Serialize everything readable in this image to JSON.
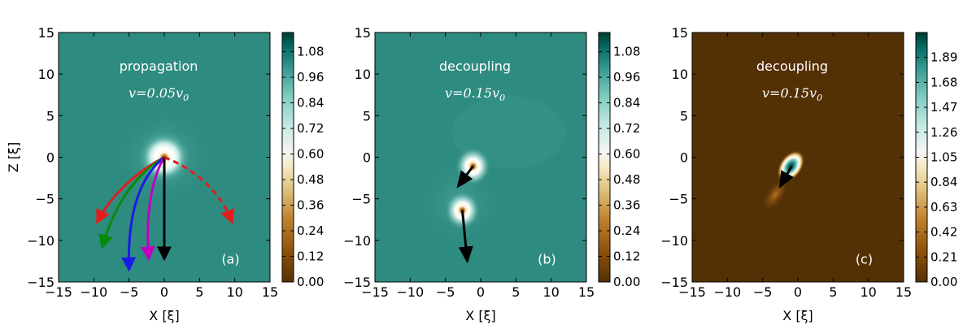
{
  "chart_data": [
    {
      "type": "heatmap",
      "panel": "(a)",
      "annotation_title": "propagation",
      "annotation_eq": "v=0.05v",
      "annotation_sub": "0",
      "xlabel": "X [ξ]",
      "ylabel": "Z [ξ]",
      "xlim": [
        -15,
        15
      ],
      "ylim": [
        -15,
        15
      ],
      "xticks": [
        -15,
        -10,
        -5,
        0,
        5,
        10,
        15
      ],
      "yticks": [
        -15,
        -10,
        -5,
        0,
        5,
        10,
        15
      ],
      "colorbar": {
        "range": [
          0,
          1.17
        ],
        "ticks": [
          "0.00",
          "0.12",
          "0.24",
          "0.36",
          "0.48",
          "0.60",
          "0.72",
          "0.84",
          "0.96",
          "1.08"
        ]
      },
      "background_level": 0.98,
      "vortices": [
        {
          "x": 0,
          "z": 0
        }
      ],
      "trajectories": [
        {
          "color": "#e51c1c",
          "style": "solid",
          "points": [
            [
              0,
              0
            ],
            [
              -4,
              -1.8
            ],
            [
              -7.5,
              -4.5
            ],
            [
              -9.5,
              -7.8
            ]
          ]
        },
        {
          "color": "#0a8a0a",
          "style": "solid",
          "points": [
            [
              0,
              0
            ],
            [
              -4,
              -2
            ],
            [
              -7,
              -5.5
            ],
            [
              -8.8,
              -10.8
            ]
          ]
        },
        {
          "color": "#1a1ae6",
          "style": "solid",
          "points": [
            [
              0,
              0
            ],
            [
              -3,
              -2
            ],
            [
              -5.3,
              -6
            ],
            [
              -5,
              -13.5
            ]
          ]
        },
        {
          "color": "#c000c0",
          "style": "solid",
          "points": [
            [
              0,
              0
            ],
            [
              -1.8,
              -2.5
            ],
            [
              -2.7,
              -7
            ],
            [
              -2.2,
              -12.2
            ]
          ]
        },
        {
          "color": "#000000",
          "style": "solid",
          "points": [
            [
              0,
              0
            ],
            [
              0,
              -12.2
            ]
          ]
        },
        {
          "color": "#e51c1c",
          "style": "dashed",
          "points": [
            [
              0,
              0
            ],
            [
              4.5,
              -1.5
            ],
            [
              8,
              -4.2
            ],
            [
              9.6,
              -7.8
            ]
          ]
        }
      ]
    },
    {
      "type": "heatmap",
      "panel": "(b)",
      "annotation_title": "decoupling",
      "annotation_eq": "v=0.15v",
      "annotation_sub": "0",
      "xlabel": "X [ξ]",
      "ylabel": "",
      "xlim": [
        -15,
        15
      ],
      "ylim": [
        -15,
        15
      ],
      "xticks": [
        -15,
        -10,
        -5,
        0,
        5,
        10,
        15
      ],
      "yticks": [
        -15,
        -10,
        -5,
        0,
        5,
        10,
        15
      ],
      "colorbar": {
        "range": [
          0,
          1.17
        ],
        "ticks": [
          "0.00",
          "0.12",
          "0.24",
          "0.36",
          "0.48",
          "0.60",
          "0.72",
          "0.84",
          "0.96",
          "1.08"
        ]
      },
      "background_level": 1.0,
      "vortices": [
        {
          "x": -1.1,
          "z": -1.1
        },
        {
          "x": -2.6,
          "z": -6.4
        }
      ],
      "arrows": [
        {
          "from": [
            -1.1,
            -1.1
          ],
          "to": [
            -3.2,
            -3.5
          ]
        },
        {
          "from": [
            -2.6,
            -6.4
          ],
          "to": [
            -1.9,
            -12.5
          ]
        }
      ]
    },
    {
      "type": "heatmap",
      "panel": "(c)",
      "annotation_title": "decoupling",
      "annotation_eq": "v=0.15v",
      "annotation_sub": "0",
      "xlabel": "X [ξ]",
      "ylabel": "",
      "xlim": [
        -15,
        15
      ],
      "ylim": [
        -15,
        15
      ],
      "xticks": [
        -15,
        -10,
        -5,
        0,
        5,
        10,
        15
      ],
      "yticks": [
        -15,
        -10,
        -5,
        0,
        5,
        10,
        15
      ],
      "colorbar": {
        "range": [
          0,
          2.1
        ],
        "ticks": [
          "0.00",
          "0.21",
          "0.42",
          "0.63",
          "0.84",
          "1.05",
          "1.26",
          "1.47",
          "1.68",
          "1.89"
        ]
      },
      "background_level": 0.0,
      "vortices": [
        {
          "x": -1.0,
          "z": -1.1
        }
      ],
      "arrows": [
        {
          "from": [
            -0.9,
            -1.1
          ],
          "to": [
            -2.5,
            -3.5
          ]
        }
      ]
    }
  ]
}
